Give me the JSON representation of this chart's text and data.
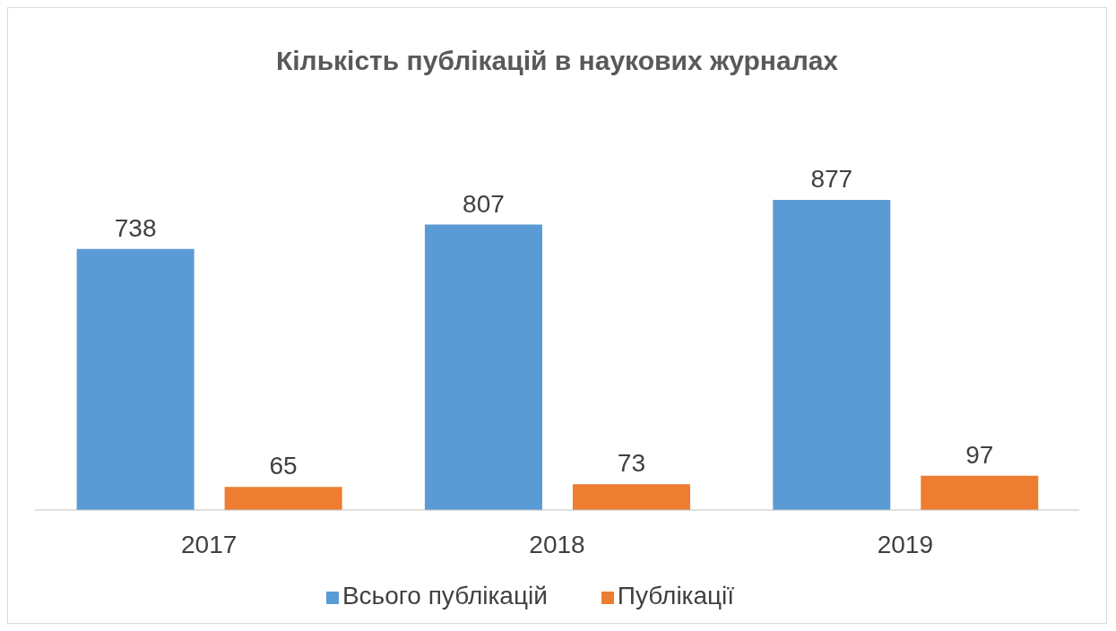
{
  "chart_data": {
    "type": "bar",
    "title": "Кількість публікацій в наукових журналах",
    "categories": [
      "2017",
      "2018",
      "2019"
    ],
    "series": [
      {
        "name": "Всього публікацій",
        "color": "#5b9bd5",
        "values": [
          738,
          807,
          877
        ]
      },
      {
        "name": "Публікації",
        "color": "#ed7d31",
        "values": [
          65,
          73,
          97
        ]
      }
    ],
    "data_labels": true,
    "legend": "bottom",
    "grid": false
  }
}
